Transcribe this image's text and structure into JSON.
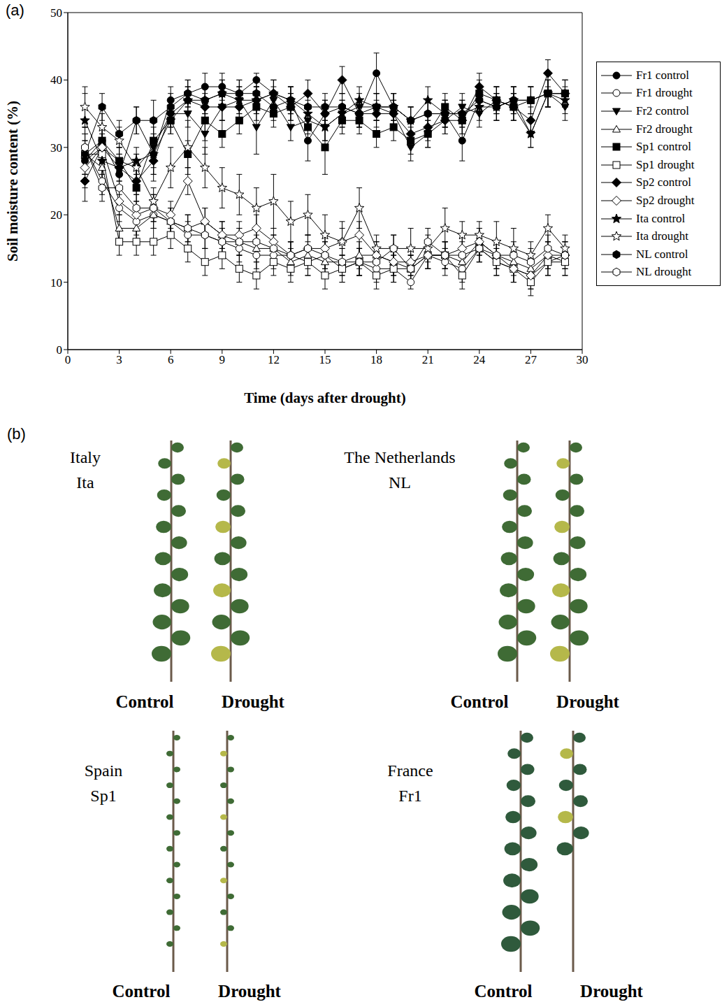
{
  "chart_data": {
    "type": "line",
    "panel_label": "(a)",
    "x_label": "Time (days after drought)",
    "y_label": "Soil moisture content (%)",
    "xlim": [
      0,
      30
    ],
    "xticks": [
      0,
      3,
      6,
      9,
      12,
      15,
      18,
      21,
      24,
      27,
      30
    ],
    "ylim": [
      0,
      50
    ],
    "yticks": [
      0,
      10,
      20,
      30,
      40,
      50
    ],
    "legend": "right",
    "x": [
      1,
      2,
      3,
      4,
      5,
      6,
      7,
      8,
      9,
      10,
      11,
      12,
      13,
      14,
      15,
      16,
      17,
      18,
      19,
      20,
      21,
      22,
      23,
      24,
      25,
      26,
      27,
      28,
      29
    ],
    "series": [
      {
        "name": "Fr1 control",
        "color": "#000000",
        "marker": "filled_circle",
        "values": [
          28,
          31,
          26,
          34,
          29,
          37,
          38,
          39,
          39,
          38,
          40,
          38,
          37,
          31,
          35,
          36,
          35,
          41,
          36,
          34,
          35,
          35,
          31,
          37,
          36,
          37,
          37,
          38,
          38
        ],
        "errors": [
          3,
          2,
          2,
          2,
          3,
          2,
          2,
          2,
          2,
          2,
          1,
          2,
          2,
          3,
          2,
          2,
          2,
          3,
          2,
          2,
          2,
          2,
          3,
          2,
          2,
          2,
          2,
          2,
          2
        ]
      },
      {
        "name": "Fr1 drought",
        "color": "#000000",
        "marker": "open_circle",
        "values": [
          30,
          25,
          21,
          19,
          20,
          19,
          17,
          17,
          16,
          15,
          14,
          14,
          14,
          13,
          14,
          12,
          13,
          12,
          12,
          10,
          14,
          13,
          12,
          15,
          13,
          12,
          11,
          13,
          14
        ],
        "errors": [
          3,
          2,
          2,
          2,
          2,
          2,
          2,
          2,
          2,
          2,
          2,
          2,
          2,
          2,
          2,
          2,
          2,
          2,
          2,
          1,
          2,
          2,
          2,
          2,
          2,
          2,
          2,
          2,
          2
        ]
      },
      {
        "name": "Fr2 control",
        "color": "#000000",
        "marker": "filled_triangle_down",
        "values": [
          28,
          30,
          28,
          27,
          30,
          35,
          35,
          32,
          36,
          37,
          33,
          37,
          33,
          34,
          33,
          35,
          36,
          36,
          35,
          30,
          32,
          34,
          36,
          35,
          37,
          36,
          32,
          38,
          36
        ],
        "errors": [
          3,
          2,
          2,
          2,
          3,
          2,
          2,
          3,
          2,
          2,
          4,
          2,
          2,
          2,
          2,
          2,
          2,
          2,
          2,
          2,
          2,
          2,
          2,
          2,
          2,
          2,
          2,
          2,
          2
        ]
      },
      {
        "name": "Fr2 drought",
        "color": "#000000",
        "marker": "open_triangle_up",
        "values": [
          29,
          27,
          18,
          18,
          20,
          19,
          18,
          19,
          17,
          16,
          15,
          15,
          13,
          14,
          13,
          13,
          14,
          14,
          13,
          12,
          14,
          14,
          13,
          16,
          14,
          13,
          12,
          14,
          13
        ],
        "errors": [
          3,
          2,
          2,
          2,
          2,
          2,
          2,
          2,
          2,
          2,
          2,
          2,
          2,
          2,
          2,
          2,
          2,
          2,
          2,
          2,
          2,
          2,
          2,
          2,
          2,
          2,
          2,
          2,
          2
        ]
      },
      {
        "name": "Sp1 control",
        "color": "#000000",
        "marker": "filled_square",
        "values": [
          29,
          31,
          28,
          24,
          31,
          34,
          29,
          34,
          32,
          34,
          36,
          35,
          36,
          33,
          30,
          34,
          34,
          32,
          33,
          31,
          32,
          36,
          34,
          38,
          37,
          36,
          37,
          38,
          38
        ],
        "errors": [
          3,
          2,
          2,
          2,
          3,
          2,
          2,
          3,
          2,
          2,
          2,
          2,
          2,
          2,
          4,
          2,
          2,
          2,
          2,
          2,
          2,
          2,
          2,
          2,
          2,
          2,
          2,
          2,
          2
        ]
      },
      {
        "name": "Sp1 drought",
        "color": "#000000",
        "marker": "open_square",
        "values": [
          29,
          29,
          16,
          16,
          16,
          17,
          15,
          13,
          14,
          12,
          11,
          13,
          12,
          13,
          11,
          12,
          13,
          11,
          12,
          12,
          14,
          14,
          11,
          15,
          13,
          12,
          10,
          13,
          13
        ],
        "errors": [
          3,
          2,
          2,
          2,
          2,
          2,
          2,
          2,
          2,
          2,
          2,
          2,
          2,
          2,
          2,
          2,
          2,
          2,
          2,
          2,
          2,
          2,
          2,
          2,
          2,
          2,
          2,
          2,
          2
        ]
      },
      {
        "name": "Sp2 control",
        "color": "#000000",
        "marker": "filled_diamond",
        "values": [
          25,
          30,
          27,
          25,
          28,
          35,
          37,
          36,
          36,
          36,
          37,
          38,
          36,
          38,
          35,
          40,
          35,
          35,
          35,
          32,
          33,
          34,
          34,
          39,
          37,
          36,
          34,
          41,
          38
        ],
        "errors": [
          3,
          2,
          2,
          2,
          3,
          2,
          2,
          2,
          2,
          2,
          2,
          2,
          2,
          2,
          2,
          2,
          2,
          2,
          2,
          2,
          2,
          2,
          2,
          2,
          2,
          2,
          2,
          2,
          2
        ]
      },
      {
        "name": "Sp2 drought",
        "color": "#000000",
        "marker": "open_diamond",
        "values": [
          27,
          30,
          22,
          20,
          21,
          20,
          25,
          19,
          17,
          17,
          18,
          16,
          14,
          15,
          15,
          16,
          17,
          14,
          13,
          13,
          14,
          14,
          15,
          16,
          14,
          12,
          11,
          14,
          14
        ],
        "errors": [
          3,
          2,
          2,
          2,
          2,
          2,
          2,
          2,
          2,
          2,
          2,
          2,
          2,
          2,
          2,
          2,
          2,
          2,
          2,
          2,
          2,
          2,
          2,
          2,
          2,
          2,
          2,
          2,
          2
        ]
      },
      {
        "name": "Ita control",
        "color": "#000000",
        "marker": "filled_star",
        "values": [
          34,
          28,
          27,
          28,
          29,
          34,
          37,
          37,
          38,
          37,
          37,
          38,
          37,
          35,
          33,
          35,
          37,
          36,
          36,
          34,
          37,
          35,
          35,
          36,
          36,
          37,
          32,
          38,
          37
        ],
        "errors": [
          4,
          2,
          2,
          2,
          3,
          2,
          2,
          2,
          2,
          2,
          2,
          2,
          2,
          2,
          2,
          2,
          2,
          2,
          2,
          2,
          2,
          2,
          2,
          2,
          2,
          2,
          2,
          2,
          2
        ]
      },
      {
        "name": "Ita drought",
        "color": "#000000",
        "marker": "open_star",
        "values": [
          36,
          33,
          31,
          27,
          22,
          27,
          30,
          27,
          24,
          23,
          21,
          22,
          19,
          20,
          17,
          16,
          21,
          15,
          15,
          15,
          15,
          18,
          17,
          17,
          16,
          15,
          14,
          18,
          15
        ],
        "errors": [
          3,
          2,
          2,
          2,
          2,
          3,
          4,
          3,
          3,
          3,
          3,
          4,
          3,
          3,
          3,
          3,
          3,
          2,
          2,
          3,
          2,
          3,
          2,
          2,
          3,
          3,
          2,
          2,
          2
        ]
      },
      {
        "name": "NL control",
        "color": "#000000",
        "marker": "filled_hexagon",
        "values": [
          29,
          36,
          32,
          34,
          34,
          36,
          38,
          37,
          38,
          38,
          38,
          36,
          37,
          36,
          36,
          36,
          35,
          36,
          36,
          34,
          35,
          35,
          35,
          37,
          36,
          37,
          37,
          38,
          38
        ],
        "errors": [
          3,
          2,
          2,
          2,
          3,
          2,
          2,
          2,
          2,
          2,
          2,
          2,
          2,
          2,
          2,
          2,
          2,
          2,
          2,
          2,
          2,
          2,
          2,
          2,
          2,
          2,
          2,
          2,
          2
        ]
      },
      {
        "name": "NL drought",
        "color": "#000000",
        "marker": "open_hexagon",
        "values": [
          30,
          24,
          24,
          21,
          21,
          19,
          18,
          17,
          16,
          16,
          16,
          15,
          14,
          15,
          14,
          13,
          13,
          13,
          15,
          12,
          16,
          14,
          14,
          15,
          14,
          14,
          13,
          15,
          14
        ],
        "errors": [
          3,
          2,
          2,
          2,
          2,
          2,
          2,
          2,
          2,
          2,
          2,
          2,
          2,
          2,
          2,
          2,
          2,
          2,
          2,
          2,
          2,
          2,
          2,
          2,
          2,
          2,
          2,
          2,
          2
        ]
      }
    ]
  },
  "panel_b": {
    "label": "(b)",
    "panels": [
      {
        "title": "Italy",
        "code": "Ita",
        "labels": [
          "Control",
          "Drought"
        ]
      },
      {
        "title": "The Netherlands",
        "code": "NL",
        "labels": [
          "Control",
          "Drought"
        ]
      },
      {
        "title": "Spain",
        "code": "Sp1",
        "labels": [
          "Control",
          "Drought"
        ]
      },
      {
        "title": "France",
        "code": "Fr1",
        "labels": [
          "Control",
          "Drought"
        ]
      }
    ]
  }
}
